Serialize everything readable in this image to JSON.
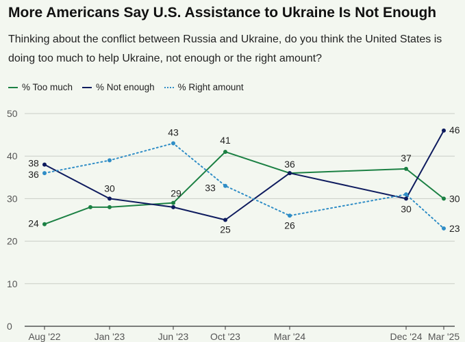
{
  "header": {
    "title": "More Americans Say U.S. Assistance to Ukraine Is Not Enough",
    "subtitle": "Thinking about the conflict between Russia and Ukraine, do you think the United States is doing too much to help Ukraine, not enough or the right amount?"
  },
  "colors": {
    "too_much": "#1b8043",
    "not_enough": "#0e1b5e",
    "right_amount": "#2f8dc6",
    "grid": "#c9cdc6"
  },
  "chart_data": {
    "type": "line",
    "title": "More Americans Say U.S. Assistance to Ukraine Is Not Enough",
    "xlabel": "",
    "ylabel": "",
    "ylim": [
      0,
      50
    ],
    "yticks": [
      0,
      10,
      20,
      30,
      40,
      50
    ],
    "grid": true,
    "legend": "top-left",
    "x": [
      "Aug '22",
      "Jan '23",
      "Jun '23",
      "Oct '23",
      "Mar '24",
      "Dec '24",
      "Mar '25"
    ],
    "series": [
      {
        "name": "% Too much",
        "style": "solid",
        "points": [
          [
            "Aug '22",
            24
          ],
          [
            "Nov '22",
            28
          ],
          [
            "Jan '23",
            28
          ],
          [
            "Jun '23",
            29
          ],
          [
            "Oct '23",
            41
          ],
          [
            "Mar '24",
            36
          ],
          [
            "Dec '24",
            37
          ],
          [
            "Mar '25",
            30
          ]
        ],
        "labels": [
          [
            "Aug '22",
            24
          ],
          [
            "Jun '23",
            29
          ],
          [
            "Oct '23",
            41
          ],
          [
            "Dec '24",
            37
          ],
          [
            "Mar '25",
            30
          ]
        ]
      },
      {
        "name": "% Not enough",
        "style": "solid",
        "points": [
          [
            "Aug '22",
            38
          ],
          [
            "Jan '23",
            30
          ],
          [
            "Jun '23",
            28
          ],
          [
            "Oct '23",
            25
          ],
          [
            "Mar '24",
            36
          ],
          [
            "Dec '24",
            30
          ],
          [
            "Mar '25",
            46
          ]
        ],
        "labels": [
          [
            "Aug '22",
            38
          ],
          [
            "Jan '23",
            30
          ],
          [
            "Oct '23",
            25
          ],
          [
            "Mar '24",
            36
          ],
          [
            "Dec '24",
            30
          ],
          [
            "Mar '25",
            46
          ]
        ]
      },
      {
        "name": "% Right amount",
        "style": "dotted",
        "points": [
          [
            "Aug '22",
            36
          ],
          [
            "Jan '23",
            39
          ],
          [
            "Jun '23",
            43
          ],
          [
            "Oct '23",
            33
          ],
          [
            "Mar '24",
            26
          ],
          [
            "Dec '24",
            31
          ],
          [
            "Mar '25",
            23
          ]
        ],
        "labels": [
          [
            "Aug '22",
            36
          ],
          [
            "Jun '23",
            43
          ],
          [
            "Oct '23",
            33
          ],
          [
            "Mar '24",
            26
          ],
          [
            "Mar '25",
            23
          ]
        ]
      }
    ]
  }
}
